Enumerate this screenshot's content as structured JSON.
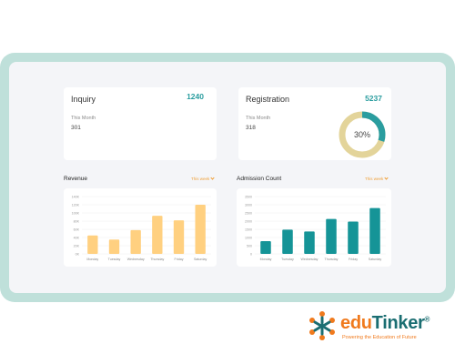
{
  "inquiry": {
    "title": "Inquiry",
    "total": "1240",
    "period_label": "This Month",
    "period_value": "301"
  },
  "registration": {
    "title": "Registration",
    "total": "5237",
    "period_label": "This Month",
    "period_value": "318",
    "donut_percent": 30,
    "donut_label": "30%"
  },
  "revenue": {
    "title": "Revenue",
    "filter": "This week"
  },
  "admission": {
    "title": "Admission Count",
    "filter": "This week"
  },
  "colors": {
    "accent_teal": "#2a9d9f",
    "bar_orange": "#ffd080",
    "bar_teal": "#159497",
    "donut_track": "#e3d49a",
    "filter_orange": "#f0a13a"
  },
  "brand": {
    "edu": "edu",
    "tinker": "Tinker",
    "reg_mark": "®",
    "tagline": "Powering the Education of Future"
  },
  "chart_data": [
    {
      "type": "bar",
      "title": "Revenue",
      "categories": [
        "Monday",
        "Tuesday",
        "Wednesday",
        "Thursday",
        "Friday",
        "Saturday"
      ],
      "yticks": [
        "0K",
        "20K",
        "40K",
        "60K",
        "80K",
        "100K",
        "120K",
        "140K"
      ],
      "values": [
        45,
        35,
        58,
        93,
        82,
        120
      ],
      "ylim": [
        0,
        140
      ]
    },
    {
      "type": "bar",
      "title": "Admission Count",
      "categories": [
        "Monday",
        "Tuesday",
        "Wednesday",
        "Thursday",
        "Friday",
        "Saturday"
      ],
      "yticks": [
        "0",
        "500",
        "1000",
        "1500",
        "2000",
        "2500",
        "3000",
        "3500"
      ],
      "values": [
        780,
        1480,
        1370,
        2130,
        1970,
        2800
      ],
      "ylim": [
        0,
        3500
      ]
    }
  ]
}
